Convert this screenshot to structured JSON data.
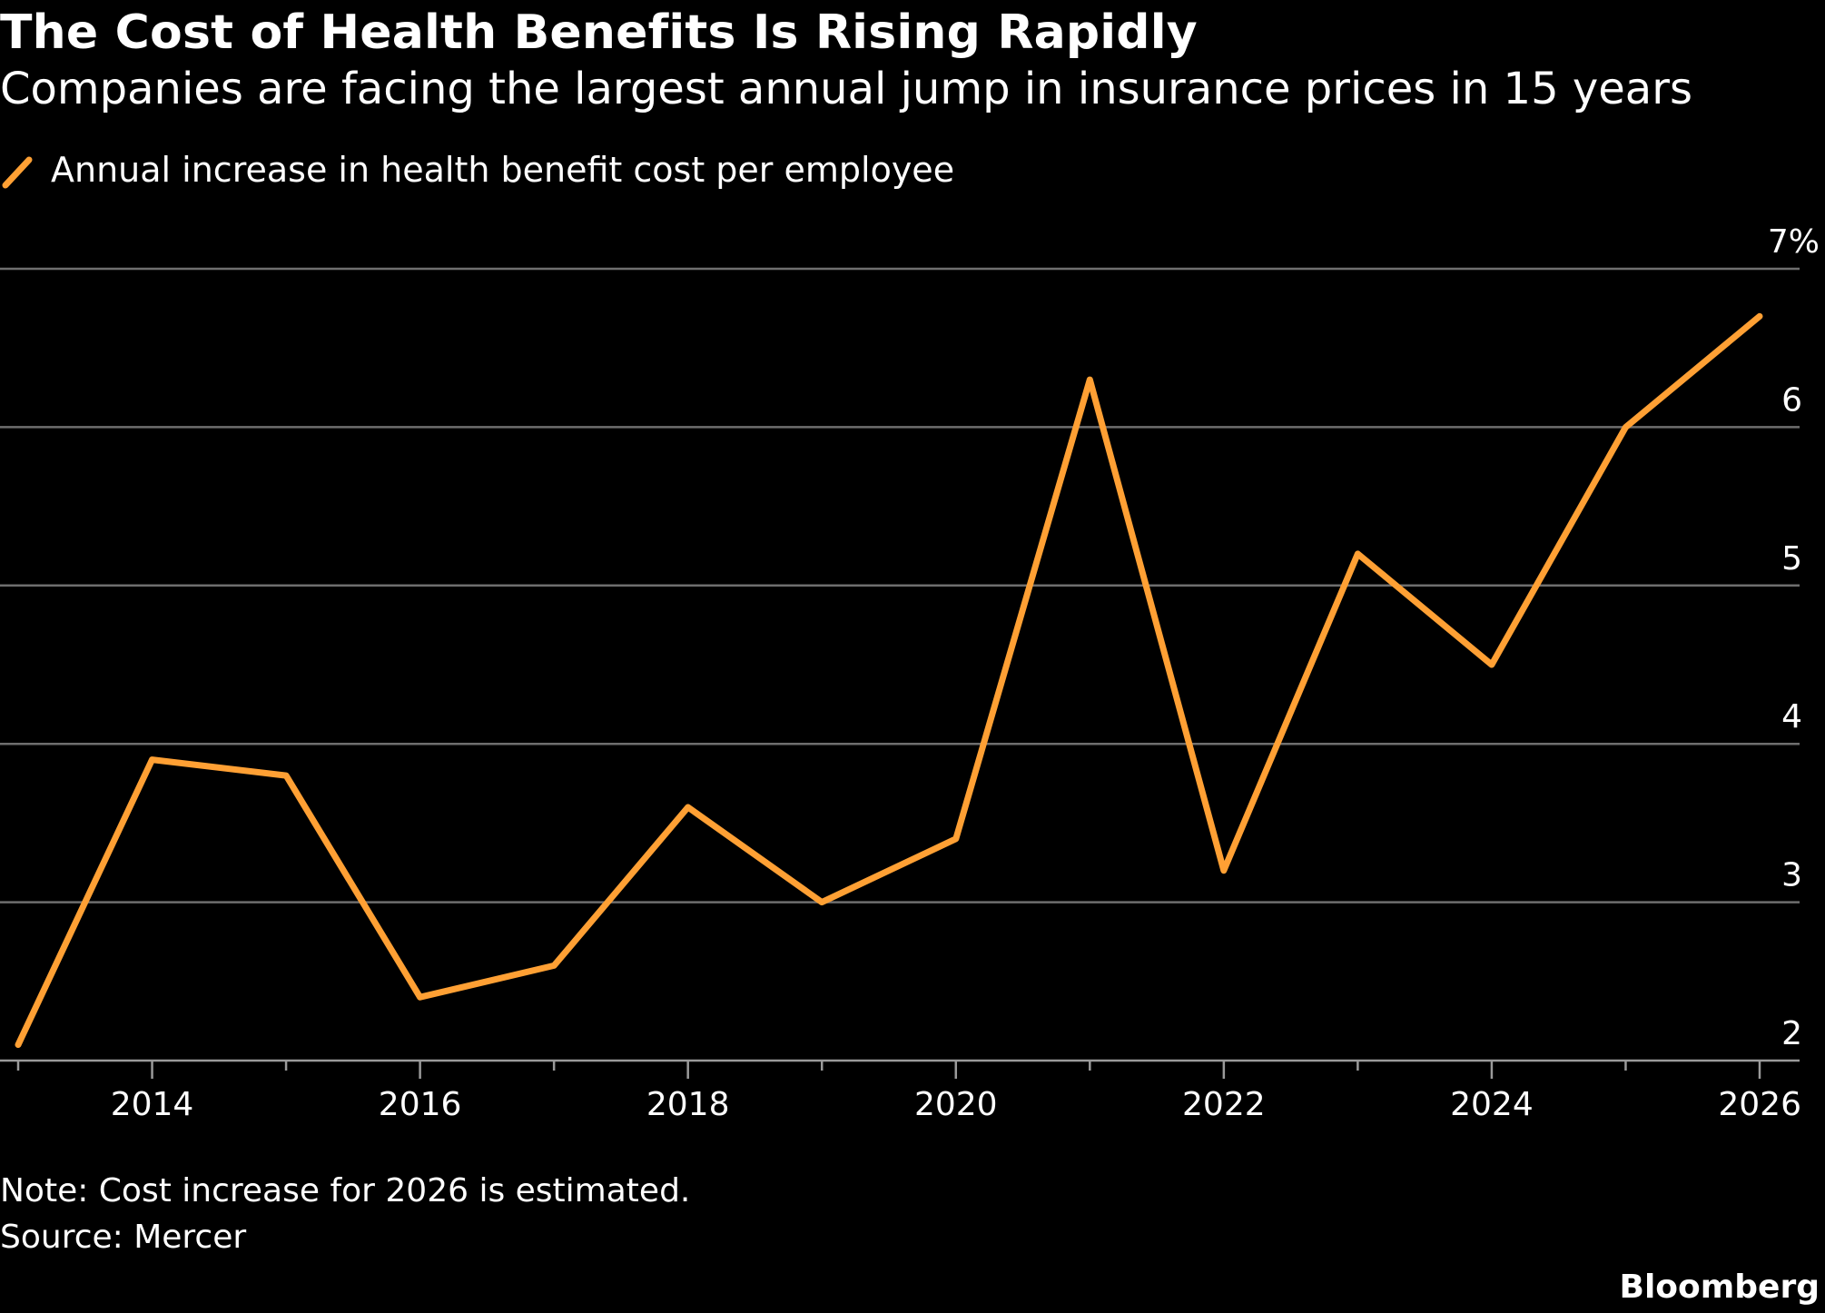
{
  "chart_data": {
    "type": "line",
    "title": "The Cost of Health Benefits Is Rising Rapidly",
    "subtitle": "Companies are facing the largest annual jump in insurance prices in 15 years",
    "legend_position": "top-left",
    "series": [
      {
        "name": "Annual increase in health benefit cost per employee",
        "color": "#ffa034",
        "x": [
          2013,
          2014,
          2015,
          2016,
          2017,
          2018,
          2019,
          2020,
          2021,
          2022,
          2023,
          2024,
          2025,
          2026
        ],
        "values": [
          2.1,
          3.9,
          3.8,
          2.4,
          2.6,
          3.6,
          3.0,
          3.4,
          6.3,
          3.2,
          5.2,
          4.5,
          6.0,
          6.7
        ]
      }
    ],
    "xlim": [
      2013,
      2026
    ],
    "ylim": [
      2,
      7
    ],
    "x_ticks": [
      2014,
      2016,
      2018,
      2020,
      2022,
      2024,
      2026
    ],
    "x_tick_labels": [
      "2014",
      "2016",
      "2018",
      "2020",
      "2022",
      "2024",
      "2026"
    ],
    "y_ticks": [
      2,
      3,
      4,
      5,
      6,
      7
    ],
    "y_tick_labels": [
      "2",
      "3",
      "4",
      "5",
      "6",
      "7%"
    ],
    "grid": "horizontal",
    "note": "Note: Cost increase for 2026 is estimated.",
    "source": "Source: Mercer",
    "brand": "Bloomberg",
    "colors": {
      "background": "#000000",
      "text": "#ffffff",
      "gridline": "#6e6e6e",
      "axis": "#9a9a9a"
    }
  }
}
